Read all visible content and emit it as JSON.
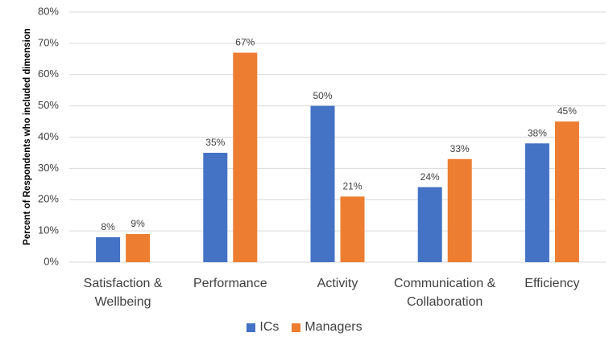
{
  "chart_data": {
    "type": "bar",
    "y_label": "Percent of Respondents who included dimension",
    "categories": [
      "Satisfaction & Wellbeing",
      "Performance",
      "Activity",
      "Communication & Collaboration",
      "Efficiency"
    ],
    "series": [
      {
        "name": "ICs",
        "color": "#4472c4",
        "values": [
          8,
          35,
          50,
          24,
          38
        ],
        "value_labels": [
          "8%",
          "35%",
          "50%",
          "24%",
          "38%"
        ]
      },
      {
        "name": "Managers",
        "color": "#ed7d31",
        "values": [
          9,
          67,
          21,
          33,
          45
        ],
        "value_labels": [
          "9%",
          "67%",
          "21%",
          "33%",
          "45%"
        ]
      }
    ],
    "ylim": [
      0,
      80
    ],
    "yticks": [
      {
        "value": 0,
        "label": "0%"
      },
      {
        "value": 10,
        "label": "10%"
      },
      {
        "value": 20,
        "label": "20%"
      },
      {
        "value": 30,
        "label": "30%"
      },
      {
        "value": 40,
        "label": "40%"
      },
      {
        "value": 50,
        "label": "50%"
      },
      {
        "value": 60,
        "label": "60%"
      },
      {
        "value": 70,
        "label": "70%"
      },
      {
        "value": 80,
        "label": "80%"
      }
    ],
    "grid": true,
    "legend": "bottom"
  }
}
